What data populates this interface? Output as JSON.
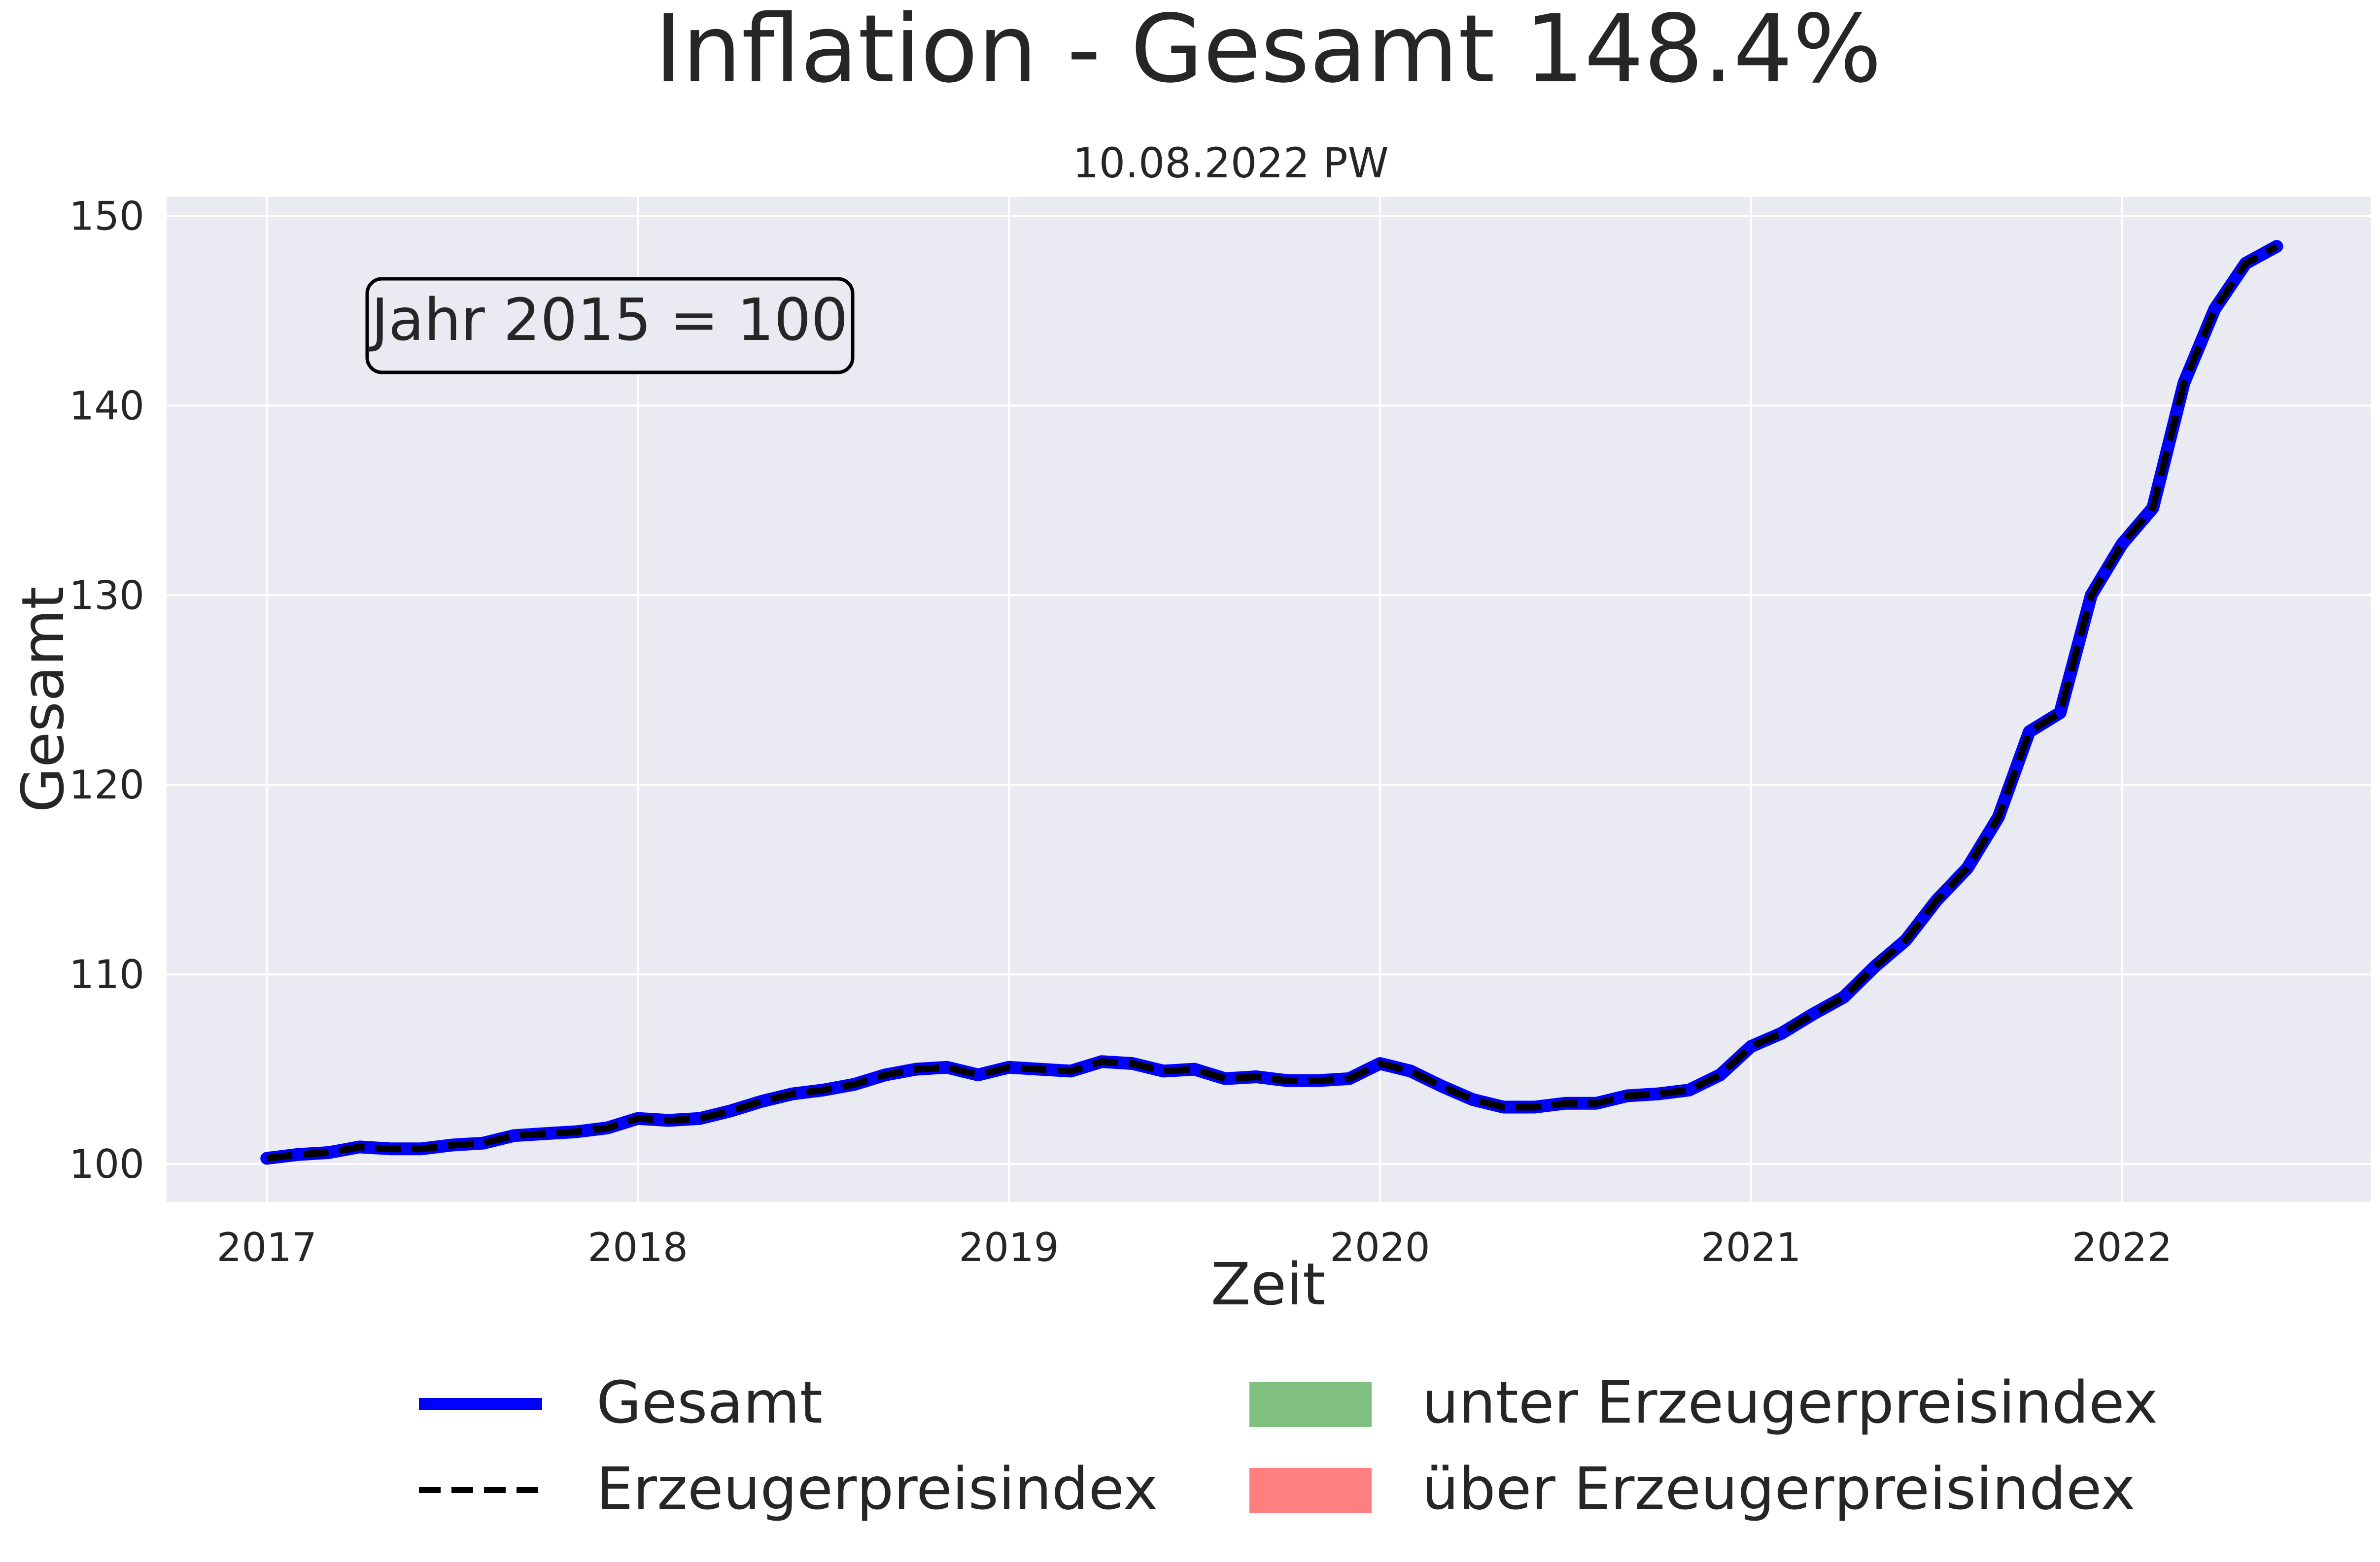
{
  "chart_data": {
    "type": "line",
    "title": "Inflation - Gesamt 148.4%",
    "subtitle": "10.08.2022 PW",
    "xlabel": "Zeit",
    "ylabel": "Gesamt",
    "annotation": "Jahr 2015 = 100",
    "xlim": [
      2016.73,
      2022.67
    ],
    "ylim": [
      98,
      151
    ],
    "grid": true,
    "legend_position": "bottom",
    "xticks": [
      2017,
      2018,
      2019,
      2020,
      2021,
      2022
    ],
    "xtick_labels": [
      "2017",
      "2018",
      "2019",
      "2020",
      "2021",
      "2022"
    ],
    "yticks": [
      100,
      110,
      120,
      130,
      140,
      150
    ],
    "ytick_labels": [
      "100",
      "110",
      "120",
      "130",
      "140",
      "150"
    ],
    "x": [
      2017.0,
      2017.083,
      2017.167,
      2017.25,
      2017.333,
      2017.417,
      2017.5,
      2017.583,
      2017.667,
      2017.75,
      2017.833,
      2017.917,
      2018.0,
      2018.083,
      2018.167,
      2018.25,
      2018.333,
      2018.417,
      2018.5,
      2018.583,
      2018.667,
      2018.75,
      2018.833,
      2018.917,
      2019.0,
      2019.083,
      2019.167,
      2019.25,
      2019.333,
      2019.417,
      2019.5,
      2019.583,
      2019.667,
      2019.75,
      2019.833,
      2019.917,
      2020.0,
      2020.083,
      2020.167,
      2020.25,
      2020.333,
      2020.417,
      2020.5,
      2020.583,
      2020.667,
      2020.75,
      2020.833,
      2020.917,
      2021.0,
      2021.083,
      2021.167,
      2021.25,
      2021.333,
      2021.417,
      2021.5,
      2021.583,
      2021.667,
      2021.75,
      2021.833,
      2021.917,
      2022.0,
      2022.083,
      2022.167,
      2022.25,
      2022.333,
      2022.417
    ],
    "series": [
      {
        "name": "Gesamt",
        "style": "solid",
        "color": "#0000ff",
        "values": [
          100.3,
          100.5,
          100.6,
          100.9,
          100.8,
          100.8,
          101.0,
          101.1,
          101.5,
          101.6,
          101.7,
          101.9,
          102.4,
          102.3,
          102.4,
          102.8,
          103.3,
          103.7,
          103.9,
          104.2,
          104.7,
          105.0,
          105.1,
          104.7,
          105.1,
          105.0,
          104.9,
          105.4,
          105.3,
          104.9,
          105.0,
          104.5,
          104.6,
          104.4,
          104.4,
          104.5,
          105.3,
          104.9,
          104.1,
          103.4,
          103.0,
          103.0,
          103.2,
          103.2,
          103.6,
          103.7,
          103.9,
          104.7,
          106.2,
          106.9,
          107.9,
          108.8,
          110.4,
          111.8,
          113.9,
          115.6,
          118.3,
          122.8,
          123.8,
          130.0,
          132.7,
          134.6,
          141.2,
          145.1,
          147.5,
          148.4
        ]
      },
      {
        "name": "Erzeugerpreisindex",
        "style": "dashed",
        "color": "#000000",
        "values": [
          100.3,
          100.5,
          100.6,
          100.9,
          100.8,
          100.8,
          101.0,
          101.1,
          101.5,
          101.6,
          101.7,
          101.9,
          102.4,
          102.3,
          102.4,
          102.8,
          103.3,
          103.7,
          103.9,
          104.2,
          104.7,
          105.0,
          105.1,
          104.7,
          105.1,
          105.0,
          104.9,
          105.4,
          105.3,
          104.9,
          105.0,
          104.5,
          104.6,
          104.4,
          104.4,
          104.5,
          105.3,
          104.9,
          104.1,
          103.4,
          103.0,
          103.0,
          103.2,
          103.2,
          103.6,
          103.7,
          103.9,
          104.7,
          106.2,
          106.9,
          107.9,
          108.8,
          110.4,
          111.8,
          113.9,
          115.6,
          118.3,
          122.8,
          123.8,
          130.0,
          132.7,
          134.6,
          141.2,
          145.1,
          147.5,
          148.4
        ]
      }
    ],
    "fills": [
      {
        "name": "unter Erzeugerpreisindex",
        "color": "#7fbf7f"
      },
      {
        "name": "über Erzeugerpreisindex",
        "color": "#ff7f7f"
      }
    ],
    "legend": [
      {
        "label": "Gesamt",
        "kind": "line-solid",
        "color": "#0000ff"
      },
      {
        "label": "Erzeugerpreisindex",
        "kind": "line-dashed",
        "color": "#000000"
      },
      {
        "label": "unter Erzeugerpreisindex",
        "kind": "patch",
        "color": "#7fbf7f"
      },
      {
        "label": "über Erzeugerpreisindex",
        "kind": "patch",
        "color": "#ff7f7f"
      }
    ],
    "colors": {
      "plot_background": "#eaeaf2",
      "grid": "#ffffff",
      "text": "#262626"
    }
  }
}
